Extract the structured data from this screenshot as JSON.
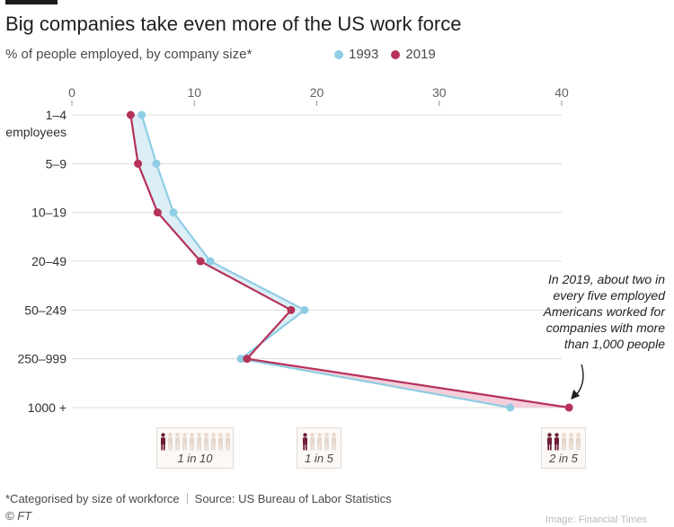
{
  "header": {
    "title": "Big companies take even more of the US work force",
    "subtitle": "% of people employed, by company size*"
  },
  "legend": [
    {
      "label": "1993",
      "color": "#8fcde4"
    },
    {
      "label": "2019",
      "color": "#b5325a"
    }
  ],
  "annotation": {
    "text": "In 2019, about two in every five employed Americans worked for companies with more than 1,000 people"
  },
  "ratios": [
    {
      "label": "1 in 10",
      "highlight": 1,
      "total": 10,
      "at_value": 10
    },
    {
      "label": "1 in 5",
      "highlight": 1,
      "total": 5,
      "at_value": 20
    },
    {
      "label": "2 in 5",
      "highlight": 2,
      "total": 5,
      "at_value": 40
    }
  ],
  "footer": {
    "note": "*Categorised by size of workforce",
    "source": "Source: US Bureau of Labor Statistics",
    "copyright": "© FT",
    "image_credit": "Image: Financial Times"
  },
  "colors": {
    "series_1993": "#8fcde4",
    "series_2019": "#b5325a",
    "fill_positive": "#d6ebf4",
    "fill_negative": "#f2c6d4",
    "gridline": "#e0dbd6",
    "figure_dark": "#6e1d37",
    "figure_light": "#e6d8cd"
  },
  "chart_data": {
    "type": "line",
    "orientation": "horizontal",
    "xlim": [
      0,
      40
    ],
    "xticks": [
      0,
      10,
      20,
      30,
      40
    ],
    "categories": [
      "1–4 employees",
      "5–9",
      "10–19",
      "20–49",
      "50–249",
      "250–999",
      "1000 +"
    ],
    "category_lines": [
      [
        "1–4",
        "employees"
      ],
      [
        "5–9"
      ],
      [
        "10–19"
      ],
      [
        "20–49"
      ],
      [
        "50–249"
      ],
      [
        "250–999"
      ],
      [
        "1000 +"
      ]
    ],
    "series": [
      {
        "name": "1993",
        "values": [
          5.7,
          6.9,
          8.3,
          11.3,
          19.0,
          13.8,
          35.8
        ]
      },
      {
        "name": "2019",
        "values": [
          4.8,
          5.4,
          7.0,
          10.5,
          17.9,
          14.3,
          40.6
        ]
      }
    ],
    "grid": true,
    "legend_position": "top"
  }
}
